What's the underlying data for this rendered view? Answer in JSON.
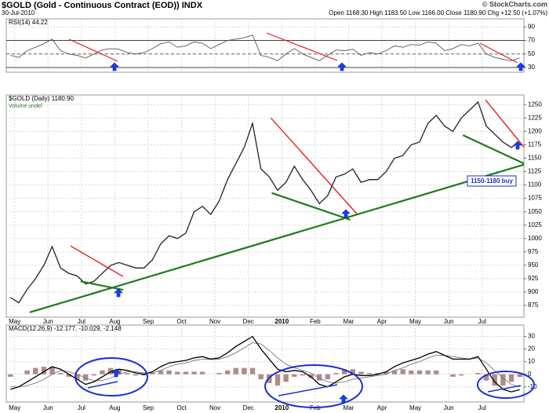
{
  "header": {
    "symbol_title": "$GOLD (Gold - Continuous Contract (EOD)) INDX",
    "date": "30-Jul-2010",
    "quote": "Open 1168.30 High 1183.50 Low 1166.00 Close 1180.90 Chg +12.50 (+1.07%)",
    "credit": "© StockCharts.com"
  },
  "chart_data": [
    {
      "type": "line",
      "title": "RSI(14) 44.22",
      "color": "#555555",
      "grid": true,
      "ylim": [
        23,
        102
      ],
      "yticks": [
        30,
        50,
        70,
        90
      ],
      "guide_lines": [
        30,
        70
      ],
      "midline": 50,
      "values": [
        48,
        45,
        55,
        60,
        65,
        72,
        55,
        50,
        48,
        44,
        50,
        56,
        58,
        57,
        52,
        50,
        52,
        58,
        65,
        68,
        60,
        62,
        68,
        66,
        58,
        64,
        70,
        72,
        74,
        78,
        48,
        45,
        40,
        50,
        58,
        50,
        45,
        40,
        48,
        56,
        55,
        57,
        48,
        52,
        50,
        55,
        62,
        60,
        64,
        63,
        68,
        66,
        55,
        58,
        64,
        62,
        66,
        50,
        45,
        42,
        40,
        44.22
      ]
    },
    {
      "type": "line",
      "title": "$GOLD (Daily) 1180.90",
      "subtitle": "Volume undef",
      "color": "#222222",
      "grid": true,
      "ylim": [
        853,
        1268
      ],
      "yticks": [
        875,
        900,
        925,
        950,
        975,
        1000,
        1025,
        1050,
        1075,
        1100,
        1125,
        1150,
        1175,
        1200,
        1225,
        1250
      ],
      "categories": [
        null,
        "May",
        null,
        null,
        null,
        "Jun",
        null,
        null,
        null,
        "Jul",
        null,
        null,
        null,
        "Aug",
        null,
        null,
        null,
        "Sep",
        null,
        null,
        null,
        "Oct",
        null,
        null,
        null,
        "Nov",
        null,
        null,
        null,
        "Dec",
        null,
        null,
        null,
        "2010",
        null,
        null,
        null,
        "Feb",
        null,
        null,
        null,
        "Mar",
        null,
        null,
        null,
        "Apr",
        null,
        null,
        null,
        "May",
        null,
        null,
        null,
        "Jun",
        null,
        null,
        null,
        "Jul",
        null,
        null,
        null,
        null
      ],
      "values": [
        890,
        880,
        905,
        925,
        950,
        985,
        945,
        935,
        930,
        915,
        920,
        935,
        950,
        955,
        950,
        945,
        945,
        960,
        990,
        1005,
        1000,
        1010,
        1050,
        1060,
        1045,
        1070,
        1110,
        1140,
        1170,
        1215,
        1130,
        1115,
        1090,
        1105,
        1135,
        1110,
        1090,
        1065,
        1080,
        1115,
        1120,
        1130,
        1105,
        1110,
        1110,
        1125,
        1150,
        1155,
        1175,
        1180,
        1215,
        1230,
        1210,
        1200,
        1225,
        1240,
        1255,
        1210,
        1195,
        1180,
        1170,
        1180.9
      ],
      "trendlines": [
        {
          "from": [
            2.3,
            862
          ],
          "to": [
            61.5,
            1138
          ],
          "color": "#1e7a1e"
        },
        {
          "from": [
            7.2,
            986
          ],
          "to": [
            13.5,
            929
          ],
          "color": "#e02020"
        },
        {
          "from": [
            8.4,
            920
          ],
          "to": [
            13.5,
            904
          ],
          "color": "#1e7a1e"
        },
        {
          "from": [
            31.2,
            1225
          ],
          "to": [
            41.5,
            1046
          ],
          "color": "#e02020"
        },
        {
          "from": [
            31.3,
            1085
          ],
          "to": [
            40.7,
            1035
          ],
          "color": "#1e7a1e"
        },
        {
          "from": [
            56.9,
            1259
          ],
          "to": [
            61.5,
            1171
          ],
          "color": "#e02020"
        },
        {
          "from": [
            54.2,
            1193
          ],
          "to": [
            61.5,
            1140
          ],
          "color": "#1e7a1e"
        }
      ],
      "annotation": "1150-1180 buy"
    },
    {
      "type": "macd",
      "title": "MACD(12,26,9) -12.177, -10.029, -2.148",
      "grid": true,
      "ylim": [
        -22,
        39
      ],
      "yticks": [
        -10,
        0,
        10,
        20,
        30
      ],
      "macd_color": "#000000",
      "signal_color": "#777777",
      "histogram_color": "#b08a8a",
      "macd": [
        -12,
        -10,
        -6,
        -2,
        2,
        6,
        4,
        0,
        -4,
        -8,
        -6,
        -2,
        2,
        4,
        3,
        1,
        0,
        2,
        6,
        9,
        10,
        11,
        13,
        14,
        12,
        13,
        17,
        22,
        26,
        30,
        20,
        12,
        4,
        2,
        3,
        2,
        -2,
        -8,
        -10,
        -6,
        -2,
        0,
        -1,
        -1,
        0,
        2,
        6,
        9,
        11,
        13,
        16,
        18,
        15,
        12,
        12,
        12,
        14,
        4,
        -6,
        -12,
        -14,
        -12.177
      ],
      "signal": [
        -10,
        -10,
        -9,
        -7,
        -4,
        0,
        3,
        2,
        0,
        -3,
        -5,
        -5,
        -3,
        0,
        2,
        2,
        1,
        1,
        3,
        6,
        8,
        9,
        11,
        12,
        12,
        12,
        14,
        17,
        21,
        25,
        24,
        19,
        13,
        8,
        5,
        3,
        1,
        -3,
        -6,
        -7,
        -6,
        -4,
        -3,
        -2,
        -1,
        0,
        3,
        5,
        8,
        10,
        13,
        15,
        15,
        14,
        13,
        12,
        13,
        9,
        3,
        -3,
        -8,
        -10.029
      ],
      "histogram": [
        -2,
        0,
        3,
        5,
        6,
        6,
        1,
        -2,
        -4,
        -5,
        -1,
        3,
        5,
        4,
        1,
        -1,
        -1,
        1,
        3,
        3,
        2,
        2,
        2,
        2,
        0,
        1,
        3,
        5,
        5,
        5,
        -4,
        -7,
        -9,
        -6,
        -2,
        -1,
        -3,
        -5,
        -4,
        1,
        4,
        4,
        2,
        1,
        1,
        2,
        3,
        4,
        3,
        3,
        3,
        3,
        0,
        -2,
        -1,
        0,
        1,
        -5,
        -9,
        -9,
        -6,
        -2.148
      ]
    }
  ]
}
